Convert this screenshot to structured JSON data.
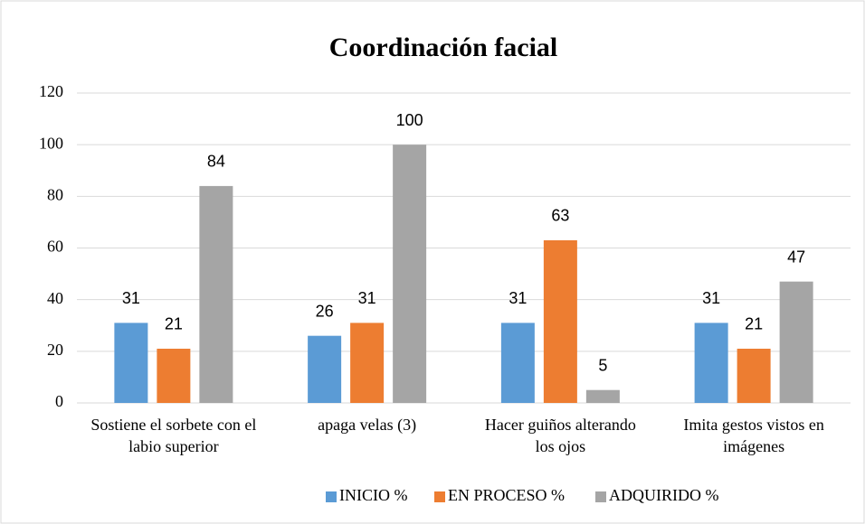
{
  "chart_data": {
    "type": "bar",
    "title": "Coordinación facial",
    "categories": [
      "Sostiene el sorbete con el labio superior",
      "apaga velas (3)",
      "Hacer guiños alterando los ojos",
      "Imita gestos vistos en imágenes"
    ],
    "series": [
      {
        "name": "INICIO %",
        "color": "#5b9bd5",
        "values": [
          31,
          26,
          31,
          31
        ]
      },
      {
        "name": "EN PROCESO %",
        "color": "#ed7d31",
        "values": [
          21,
          31,
          63,
          21
        ]
      },
      {
        "name": "ADQUIRIDO %",
        "color": "#a5a5a5",
        "values": [
          84,
          100,
          5,
          47
        ]
      }
    ],
    "ylim": [
      0,
      120
    ],
    "yticks": [
      0,
      20,
      40,
      60,
      80,
      100,
      120
    ],
    "grid": true,
    "legend": "bottom"
  }
}
